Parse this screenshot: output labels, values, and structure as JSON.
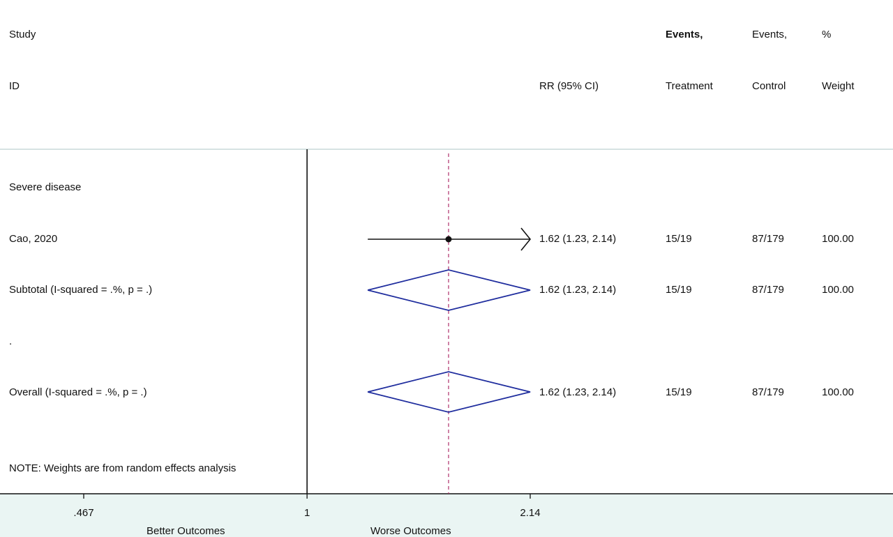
{
  "header": {
    "col_study_line1": "Study",
    "col_study_line2": "ID",
    "col_rr": "RR (95% CI)",
    "col_events_t_line1": "Events,",
    "col_events_t_line2": "Treatment",
    "col_events_c_line1": "Events,",
    "col_events_c_line2": "Control",
    "col_weight_line1": "%",
    "col_weight_line2": "Weight"
  },
  "rows": [
    {
      "label": "Severe disease",
      "rr": "",
      "events_t": "",
      "events_c": "",
      "weight": ""
    },
    {
      "label": "Cao, 2020",
      "rr": "1.62 (1.23, 2.14)",
      "events_t": "15/19",
      "events_c": "87/179",
      "weight": "100.00"
    },
    {
      "label": "Subtotal  (I-squared = .%, p = .)",
      "rr": "1.62 (1.23, 2.14)",
      "events_t": "15/19",
      "events_c": "87/179",
      "weight": "100.00"
    },
    {
      "label": ".",
      "rr": "",
      "events_t": "",
      "events_c": "",
      "weight": ""
    },
    {
      "label": "Overall  (I-squared = .%, p = .)",
      "rr": "1.62 (1.23, 2.14)",
      "events_t": "15/19",
      "events_c": "87/179",
      "weight": "100.00"
    }
  ],
  "note": "NOTE: Weights are from random effects analysis",
  "axis": {
    "ticks": [
      ".467",
      "1",
      "2.14"
    ],
    "better_label": "Better Outcomes",
    "worse_label": "Worse Outcomes"
  },
  "chart_data": {
    "type": "forest",
    "x_scale": "log",
    "xlim": [
      0.467,
      2.14
    ],
    "null_line": 1,
    "pooled_reference": 1.62,
    "tick_values": [
      0.467,
      1,
      2.14
    ],
    "studies": [
      {
        "name": "Cao, 2020",
        "estimate": 1.62,
        "ci_low": 1.23,
        "ci_high": 2.14,
        "arrow_right": true
      }
    ],
    "summaries": [
      {
        "name": "Subtotal  (I-squared = .%, p = .)",
        "estimate": 1.62,
        "ci_low": 1.23,
        "ci_high": 2.14
      },
      {
        "name": "Overall  (I-squared = .%, p = .)",
        "estimate": 1.62,
        "ci_low": 1.23,
        "ci_high": 2.14
      }
    ],
    "colors": {
      "diamond": "#1f2d9e",
      "reference_line": "#b0306a",
      "axis": "#111111",
      "study": "#111111",
      "footer_bg": "#eaf5f3"
    }
  }
}
